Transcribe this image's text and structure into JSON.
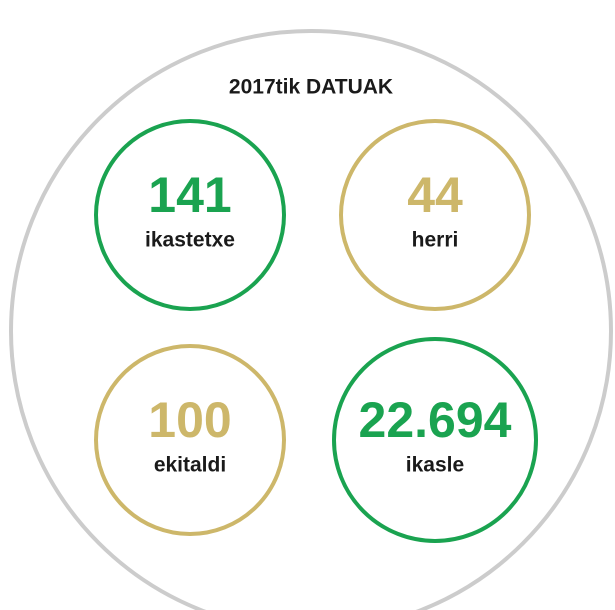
{
  "title": "2017tik DATUAK",
  "stats": [
    {
      "value": "141",
      "label": "ikastetxe",
      "color": "#1aa350"
    },
    {
      "value": "44",
      "label": "herri",
      "color": "#cdb76a"
    },
    {
      "value": "100",
      "label": "ekitaldi",
      "color": "#cdb76a"
    },
    {
      "value": "22.694",
      "label": "ikasle",
      "color": "#1aa350"
    }
  ]
}
